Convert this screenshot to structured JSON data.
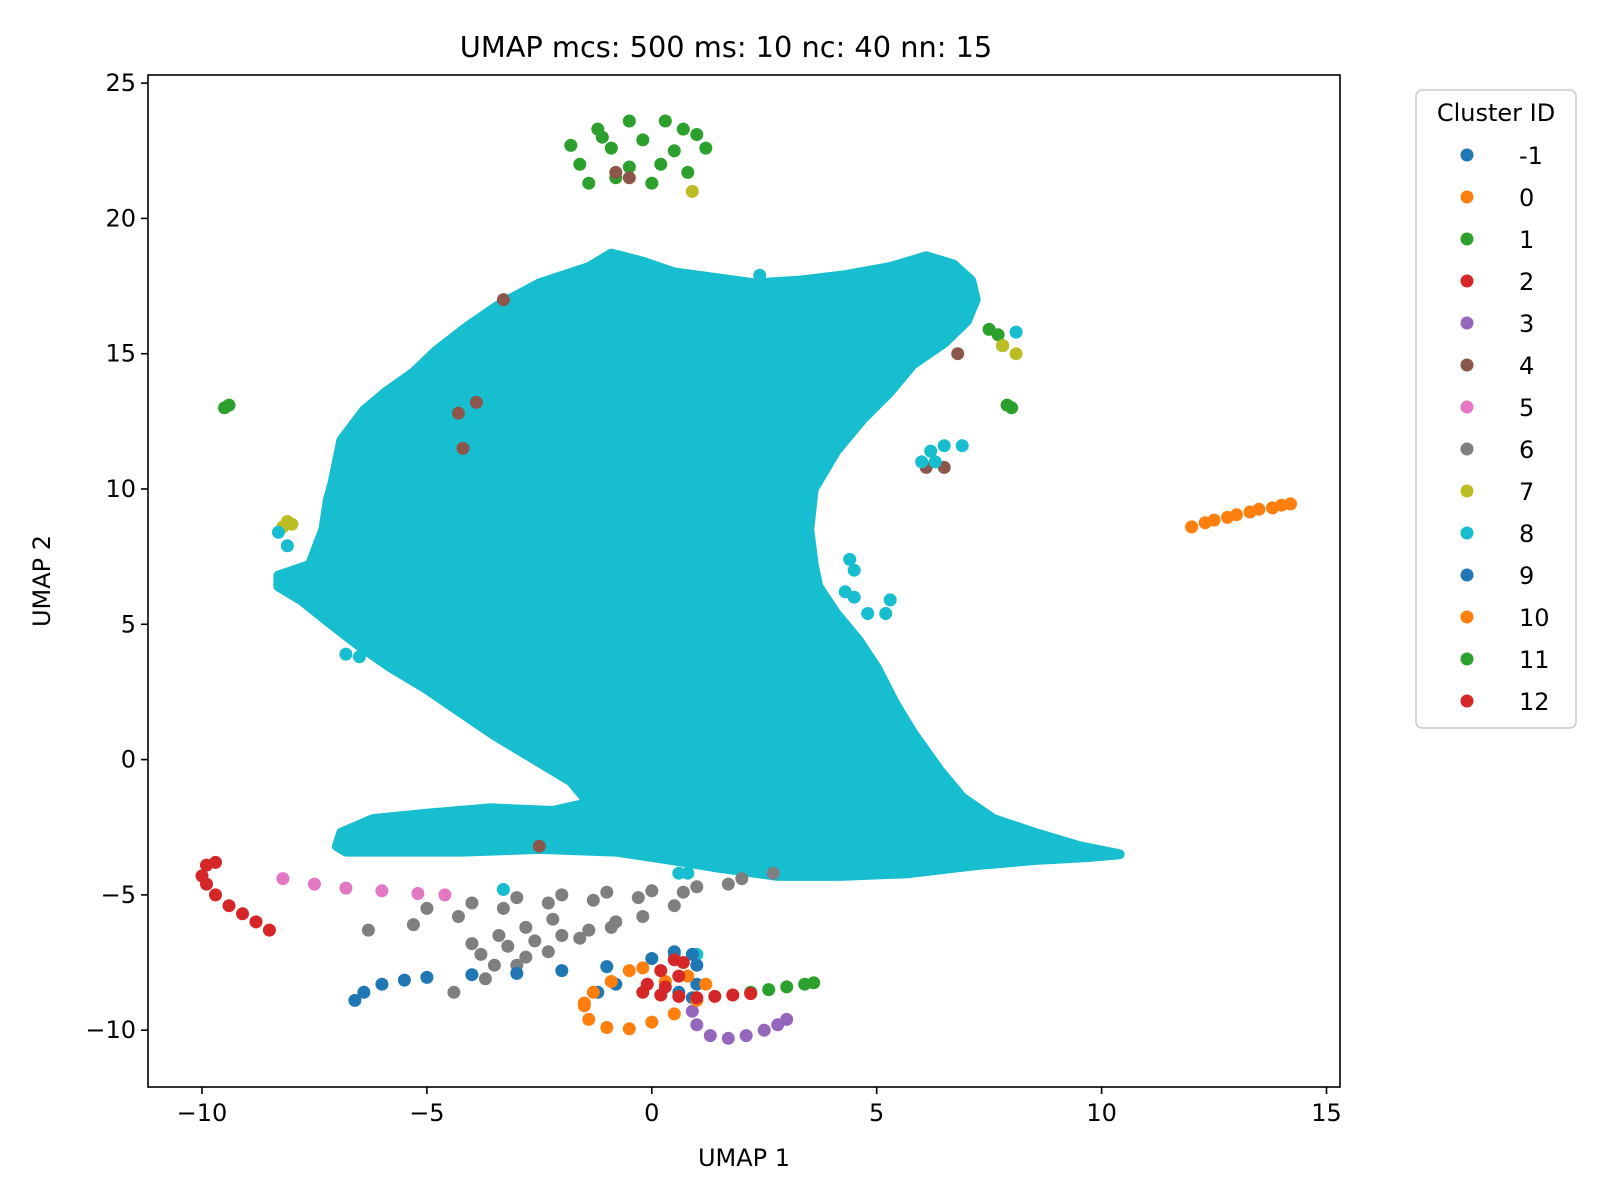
{
  "chart_data": {
    "type": "scatter",
    "title": "UMAP mcs: 500 ms: 10 nc: 40 nn: 15",
    "xlabel": "UMAP 1",
    "ylabel": "UMAP 2",
    "xlim": [
      -11.2,
      15.3
    ],
    "ylim": [
      -12.1,
      25.3
    ],
    "xticks": [
      -10,
      -5,
      0,
      5,
      10,
      15
    ],
    "xtick_labels": [
      "−10",
      "−5",
      "0",
      "5",
      "10",
      "15"
    ],
    "yticks": [
      -10,
      -5,
      0,
      5,
      10,
      15,
      20,
      25
    ],
    "ytick_labels": [
      "−10",
      "−5",
      "0",
      "5",
      "10",
      "15",
      "20",
      "25"
    ],
    "grid": false,
    "legend": {
      "title": "Cluster ID",
      "placement": "outside-right-top"
    },
    "series": [
      {
        "name": "-1",
        "color": "#1f77b4",
        "points": []
      },
      {
        "name": "0",
        "color": "#ff7f0e",
        "points": [
          [
            12.0,
            8.6
          ],
          [
            12.5,
            8.85
          ],
          [
            13.0,
            9.05
          ],
          [
            13.5,
            9.25
          ],
          [
            14.0,
            9.4
          ],
          [
            14.2,
            9.45
          ],
          [
            12.3,
            8.75
          ],
          [
            12.8,
            8.95
          ],
          [
            13.3,
            9.15
          ],
          [
            13.8,
            9.3
          ]
        ]
      },
      {
        "name": "1",
        "color": "#2ca02c",
        "points": [
          [
            -1.8,
            22.7
          ],
          [
            -1.2,
            23.3
          ],
          [
            -0.5,
            23.6
          ],
          [
            0.3,
            23.6
          ],
          [
            1.0,
            23.1
          ],
          [
            1.2,
            22.6
          ],
          [
            0.8,
            21.7
          ],
          [
            0.0,
            21.3
          ],
          [
            -0.8,
            21.5
          ],
          [
            -1.4,
            21.3
          ],
          [
            -1.6,
            22.0
          ],
          [
            -0.9,
            22.6
          ],
          [
            -0.2,
            22.9
          ],
          [
            0.5,
            22.5
          ],
          [
            0.2,
            22.0
          ],
          [
            -0.5,
            21.9
          ],
          [
            -1.1,
            23.0
          ],
          [
            0.7,
            23.3
          ],
          [
            -9.5,
            13.0
          ],
          [
            -9.4,
            13.1
          ],
          [
            7.5,
            15.9
          ],
          [
            7.7,
            15.7
          ],
          [
            7.8,
            15.3
          ],
          [
            7.9,
            13.1
          ],
          [
            8.0,
            13.0
          ]
        ]
      },
      {
        "name": "2",
        "color": "#d62728",
        "points": [
          [
            -10.0,
            -4.3
          ],
          [
            -9.9,
            -3.9
          ],
          [
            -9.7,
            -3.8
          ],
          [
            -9.9,
            -4.6
          ],
          [
            -9.7,
            -5.0
          ],
          [
            -9.4,
            -5.4
          ],
          [
            -9.1,
            -5.7
          ],
          [
            -8.8,
            -6.0
          ],
          [
            -8.5,
            -6.3
          ]
        ]
      },
      {
        "name": "3",
        "color": "#9467bd",
        "points": [
          [
            0.9,
            -9.3
          ],
          [
            1.0,
            -9.8
          ],
          [
            1.3,
            -10.2
          ],
          [
            1.7,
            -10.3
          ],
          [
            2.1,
            -10.2
          ],
          [
            2.5,
            -10.0
          ],
          [
            2.8,
            -9.8
          ],
          [
            3.0,
            -9.6
          ]
        ]
      },
      {
        "name": "4",
        "color": "#8c564b",
        "points": [
          [
            -0.8,
            21.7
          ],
          [
            -0.5,
            21.5
          ],
          [
            -3.3,
            17.0
          ],
          [
            -3.9,
            13.2
          ],
          [
            -4.3,
            12.8
          ],
          [
            -4.2,
            11.5
          ],
          [
            6.8,
            15.0
          ],
          [
            6.1,
            10.8
          ],
          [
            6.5,
            10.8
          ],
          [
            -2.5,
            -3.2
          ]
        ]
      },
      {
        "name": "5",
        "color": "#e377c2",
        "points": [
          [
            -8.2,
            -4.4
          ],
          [
            -7.5,
            -4.6
          ],
          [
            -6.8,
            -4.75
          ],
          [
            -6.0,
            -4.85
          ],
          [
            -5.2,
            -4.95
          ],
          [
            -4.6,
            -5.0
          ]
        ]
      },
      {
        "name": "6",
        "color": "#7f7f7f",
        "points": [
          [
            -6.3,
            -6.3
          ],
          [
            -5.3,
            -6.1
          ],
          [
            -4.3,
            -5.8
          ],
          [
            -3.3,
            -5.5
          ],
          [
            -2.3,
            -5.3
          ],
          [
            -1.3,
            -5.2
          ],
          [
            -0.3,
            -5.1
          ],
          [
            0.7,
            -4.9
          ],
          [
            1.7,
            -4.6
          ],
          [
            2.7,
            -4.2
          ],
          [
            -5.0,
            -5.5
          ],
          [
            -4.0,
            -5.3
          ],
          [
            -3.0,
            -5.1
          ],
          [
            -2.0,
            -5.0
          ],
          [
            -1.0,
            -4.9
          ],
          [
            0.0,
            -4.85
          ],
          [
            1.0,
            -4.7
          ],
          [
            2.0,
            -4.4
          ],
          [
            -4.4,
            -8.6
          ],
          [
            -3.7,
            -8.1
          ],
          [
            -3.0,
            -7.6
          ],
          [
            -2.3,
            -7.1
          ],
          [
            -1.6,
            -6.6
          ],
          [
            -0.9,
            -6.2
          ],
          [
            -0.2,
            -5.8
          ],
          [
            0.5,
            -5.4
          ],
          [
            -3.8,
            -7.2
          ],
          [
            -3.2,
            -6.9
          ],
          [
            -2.6,
            -6.7
          ],
          [
            -2.0,
            -6.5
          ],
          [
            -1.4,
            -6.3
          ],
          [
            -0.8,
            -6.0
          ],
          [
            -4.0,
            -6.8
          ],
          [
            -3.4,
            -6.5
          ],
          [
            -2.8,
            -6.2
          ],
          [
            -2.2,
            -5.9
          ],
          [
            -3.5,
            -7.6
          ],
          [
            -2.8,
            -7.3
          ]
        ]
      },
      {
        "name": "7",
        "color": "#bcbd22",
        "points": [
          [
            -8.1,
            8.8
          ],
          [
            -8.0,
            8.7
          ],
          [
            -8.2,
            8.6
          ],
          [
            0.9,
            21.0
          ],
          [
            7.8,
            15.3
          ],
          [
            8.1,
            15.0
          ]
        ]
      },
      {
        "name": "8",
        "color": "#17becf",
        "points": [
          [
            -8.3,
            8.4
          ],
          [
            -8.1,
            7.9
          ],
          [
            -6.8,
            3.9
          ],
          [
            -6.5,
            3.8
          ],
          [
            -5.8,
            4.0
          ],
          [
            -5.5,
            4.1
          ],
          [
            -3.3,
            -4.8
          ],
          [
            0.5,
            -7.2
          ],
          [
            1.0,
            -7.2
          ],
          [
            0.6,
            -4.2
          ],
          [
            0.8,
            -4.2
          ],
          [
            4.4,
            7.4
          ],
          [
            4.5,
            7.0
          ],
          [
            4.3,
            6.2
          ],
          [
            4.5,
            6.0
          ],
          [
            4.8,
            5.4
          ],
          [
            5.2,
            5.4
          ],
          [
            5.3,
            5.9
          ],
          [
            5.6,
            14.5
          ],
          [
            6.0,
            11.0
          ],
          [
            6.2,
            11.4
          ],
          [
            6.5,
            11.6
          ],
          [
            6.9,
            11.6
          ],
          [
            6.3,
            11.0
          ],
          [
            8.1,
            15.8
          ],
          [
            2.4,
            17.9
          ]
        ]
      },
      {
        "name": "9",
        "color": "#1f77b4",
        "points": [
          [
            -6.6,
            -8.9
          ],
          [
            -6.4,
            -8.6
          ],
          [
            -6.0,
            -8.3
          ],
          [
            -5.5,
            -8.15
          ],
          [
            -5.0,
            -8.05
          ],
          [
            -4.0,
            -7.95
          ],
          [
            -3.0,
            -7.9
          ],
          [
            -2.0,
            -7.8
          ],
          [
            -1.0,
            -7.65
          ],
          [
            0.0,
            -7.35
          ],
          [
            0.5,
            -7.1
          ],
          [
            0.9,
            -7.2
          ],
          [
            1.0,
            -7.6
          ],
          [
            1.0,
            -8.3
          ],
          [
            0.9,
            -8.8
          ],
          [
            0.6,
            -8.6
          ],
          [
            -1.2,
            -8.6
          ],
          [
            -0.8,
            -8.3
          ]
        ]
      },
      {
        "name": "10",
        "color": "#ff7f0e",
        "points": [
          [
            -1.5,
            -9.1
          ],
          [
            -1.4,
            -9.6
          ],
          [
            -1.0,
            -9.9
          ],
          [
            -0.5,
            -9.95
          ],
          [
            0.0,
            -9.7
          ],
          [
            0.5,
            -9.4
          ],
          [
            1.0,
            -8.9
          ],
          [
            1.2,
            -8.3
          ],
          [
            0.8,
            -8.0
          ],
          [
            0.3,
            -8.2
          ],
          [
            -0.2,
            -7.7
          ],
          [
            -0.5,
            -7.8
          ],
          [
            -0.9,
            -8.2
          ],
          [
            -1.3,
            -8.6
          ],
          [
            -1.5,
            -9.0
          ]
        ]
      },
      {
        "name": "11",
        "color": "#2ca02c",
        "points": [
          [
            2.2,
            -8.6
          ],
          [
            2.6,
            -8.5
          ],
          [
            3.0,
            -8.4
          ],
          [
            3.4,
            -8.3
          ],
          [
            3.6,
            -8.25
          ]
        ]
      },
      {
        "name": "12",
        "color": "#d62728",
        "points": [
          [
            -0.2,
            -8.6
          ],
          [
            0.2,
            -8.7
          ],
          [
            0.6,
            -8.75
          ],
          [
            1.0,
            -8.8
          ],
          [
            1.4,
            -8.75
          ],
          [
            1.8,
            -8.7
          ],
          [
            2.2,
            -8.65
          ],
          [
            -0.1,
            -8.3
          ],
          [
            0.2,
            -7.8
          ],
          [
            0.5,
            -7.4
          ],
          [
            0.7,
            -7.5
          ],
          [
            0.6,
            -8.0
          ],
          [
            0.3,
            -8.4
          ]
        ]
      }
    ],
    "regions": [
      {
        "series": "8",
        "color": "#17becf",
        "outline": [
          [
            -8.3,
            6.8
          ],
          [
            -7.6,
            7.2
          ],
          [
            -7.3,
            8.5
          ],
          [
            -7.2,
            9.6
          ],
          [
            -7.1,
            10.2
          ],
          [
            -6.9,
            11.8
          ],
          [
            -6.4,
            12.9
          ],
          [
            -5.9,
            13.6
          ],
          [
            -5.3,
            14.3
          ],
          [
            -4.8,
            15.1
          ],
          [
            -4.1,
            16.0
          ],
          [
            -3.4,
            16.8
          ],
          [
            -2.5,
            17.6
          ],
          [
            -1.4,
            18.2
          ],
          [
            -0.9,
            18.7
          ],
          [
            -0.2,
            18.4
          ],
          [
            0.5,
            18.0
          ],
          [
            1.4,
            17.8
          ],
          [
            2.3,
            17.6
          ],
          [
            3.3,
            17.7
          ],
          [
            4.3,
            17.9
          ],
          [
            5.3,
            18.2
          ],
          [
            6.1,
            18.6
          ],
          [
            6.7,
            18.3
          ],
          [
            7.1,
            17.7
          ],
          [
            7.2,
            17.0
          ],
          [
            7.0,
            16.2
          ],
          [
            6.5,
            15.4
          ],
          [
            5.8,
            14.6
          ],
          [
            5.3,
            13.6
          ],
          [
            4.7,
            12.6
          ],
          [
            4.1,
            11.4
          ],
          [
            3.6,
            10.0
          ],
          [
            3.5,
            8.5
          ],
          [
            3.6,
            7.2
          ],
          [
            3.7,
            6.4
          ],
          [
            4.1,
            5.4
          ],
          [
            4.6,
            4.4
          ],
          [
            5.0,
            3.4
          ],
          [
            5.4,
            2.1
          ],
          [
            5.8,
            1.0
          ],
          [
            6.4,
            -0.4
          ],
          [
            6.9,
            -1.4
          ],
          [
            7.6,
            -2.2
          ],
          [
            8.5,
            -2.7
          ],
          [
            9.5,
            -3.2
          ],
          [
            10.4,
            -3.5
          ],
          [
            9.7,
            -3.6
          ],
          [
            8.6,
            -3.7
          ],
          [
            7.2,
            -3.9
          ],
          [
            5.7,
            -4.2
          ],
          [
            4.2,
            -4.3
          ],
          [
            2.8,
            -4.3
          ],
          [
            1.5,
            -4.0
          ],
          [
            0.4,
            -3.7
          ],
          [
            -0.8,
            -3.4
          ],
          [
            -2.5,
            -3.3
          ],
          [
            -4.2,
            -3.4
          ],
          [
            -5.6,
            -3.4
          ],
          [
            -6.8,
            -3.4
          ],
          [
            -7.0,
            -3.2
          ],
          [
            -6.9,
            -2.7
          ],
          [
            -6.2,
            -2.2
          ],
          [
            -5.0,
            -2.0
          ],
          [
            -3.6,
            -1.8
          ],
          [
            -2.2,
            -1.9
          ],
          [
            -1.4,
            -1.6
          ],
          [
            -1.8,
            -0.8
          ],
          [
            -2.6,
            0.0
          ],
          [
            -3.5,
            0.9
          ],
          [
            -4.3,
            1.8
          ],
          [
            -5.0,
            2.6
          ],
          [
            -5.8,
            3.4
          ],
          [
            -6.5,
            4.2
          ],
          [
            -7.2,
            5.1
          ],
          [
            -7.8,
            5.9
          ],
          [
            -8.3,
            6.4
          ]
        ]
      }
    ]
  }
}
